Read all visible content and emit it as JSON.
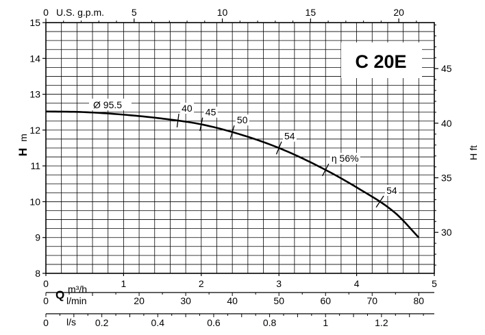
{
  "chart_data": {
    "type": "line",
    "model": "C 20E",
    "left_axis": {
      "symbol": "H",
      "unit": "m",
      "min": 8,
      "max": 15,
      "ticks": [
        8,
        9,
        10,
        11,
        12,
        13,
        14,
        15
      ]
    },
    "right_axis": {
      "symbol": "H",
      "unit": "ft",
      "ticks": [
        30,
        35,
        40,
        45
      ]
    },
    "top_axis": {
      "unit": "U.S. g.p.m.",
      "ticks": [
        0,
        5,
        10,
        15,
        20
      ]
    },
    "bottom_axes": [
      {
        "symbol": "Q",
        "unit": "m³/h",
        "ticks": [
          0,
          1,
          2,
          3,
          4,
          5
        ],
        "labels": [
          "0",
          "1",
          "2",
          "3",
          "4",
          "5"
        ]
      },
      {
        "unit": "l/min",
        "ticks": [
          0,
          20,
          30,
          40,
          50,
          60,
          70,
          80
        ],
        "labels": [
          "0",
          "20",
          "30",
          "40",
          "50",
          "60",
          "70",
          "80"
        ]
      },
      {
        "unit": "l/s",
        "ticks": [
          0,
          0.2,
          0.4,
          0.6,
          0.8,
          1,
          1.2
        ],
        "labels": [
          "0",
          "0.2",
          "0.4",
          "0.6",
          "0.8",
          "1",
          "1.2"
        ]
      }
    ],
    "xlim": [
      0,
      5
    ],
    "ylim": [
      8,
      15
    ],
    "grid": true,
    "series": [
      {
        "name": "Ø 95.5",
        "x": [
          0,
          0.5,
          1,
          1.5,
          2,
          2.5,
          3,
          3.5,
          4,
          4.5,
          4.8
        ],
        "y": [
          12.52,
          12.5,
          12.43,
          12.32,
          12.16,
          11.88,
          11.5,
          11.0,
          10.4,
          9.68,
          9.0
        ]
      }
    ],
    "efficiency_marks": [
      {
        "label": "40",
        "x": 1.7
      },
      {
        "label": "45",
        "x": 2.0
      },
      {
        "label": "50",
        "x": 2.4
      },
      {
        "label": "54",
        "x": 3.0
      },
      {
        "label": "η 56%",
        "x": 3.6
      },
      {
        "label": "54",
        "x": 4.3
      }
    ],
    "curve_label": "Ø 95.5"
  }
}
